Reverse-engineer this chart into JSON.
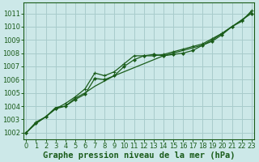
{
  "background_color": "#cce8e8",
  "grid_color": "#a8cccc",
  "line_color": "#1a5c1a",
  "xlabel": "Graphe pression niveau de la mer (hPa)",
  "ylim": [
    1001.5,
    1011.8
  ],
  "xlim": [
    -0.3,
    23.3
  ],
  "yticks": [
    1002,
    1003,
    1004,
    1005,
    1006,
    1007,
    1008,
    1009,
    1010,
    1011
  ],
  "xticks": [
    0,
    1,
    2,
    3,
    4,
    5,
    6,
    7,
    8,
    9,
    10,
    11,
    12,
    13,
    14,
    15,
    16,
    17,
    18,
    19,
    20,
    21,
    22,
    23
  ],
  "series": [
    [
      1002.0,
      1002.7,
      1003.2,
      1003.9,
      1004.0,
      1004.6,
      1005.0,
      1005.5,
      1005.9,
      1006.3,
      1006.6,
      1006.9,
      1007.2,
      1007.5,
      1007.8,
      1008.0,
      1008.2,
      1008.4,
      1008.6,
      1009.0,
      1009.5,
      1010.0,
      1010.5,
      1011.1
    ],
    [
      1002.0,
      1002.7,
      1003.2,
      1003.8,
      1004.0,
      1004.5,
      1004.9,
      1006.1,
      1006.0,
      1006.3,
      1007.0,
      1007.5,
      1007.8,
      1007.9,
      1007.8,
      1007.9,
      1008.0,
      1008.2,
      1008.6,
      1008.9,
      1009.4,
      1010.0,
      1010.5,
      1011.0
    ],
    [
      1002.0,
      1002.8,
      1003.2,
      1003.8,
      1004.2,
      1004.7,
      1005.3,
      1006.5,
      1006.3,
      1006.6,
      1007.2,
      1007.8,
      1007.8,
      1007.8,
      1007.9,
      1008.1,
      1008.3,
      1008.5,
      1008.7,
      1009.1,
      1009.5,
      1010.0,
      1010.4,
      1011.2
    ]
  ],
  "tick_fontsize": 6,
  "xlabel_fontsize": 7.5
}
